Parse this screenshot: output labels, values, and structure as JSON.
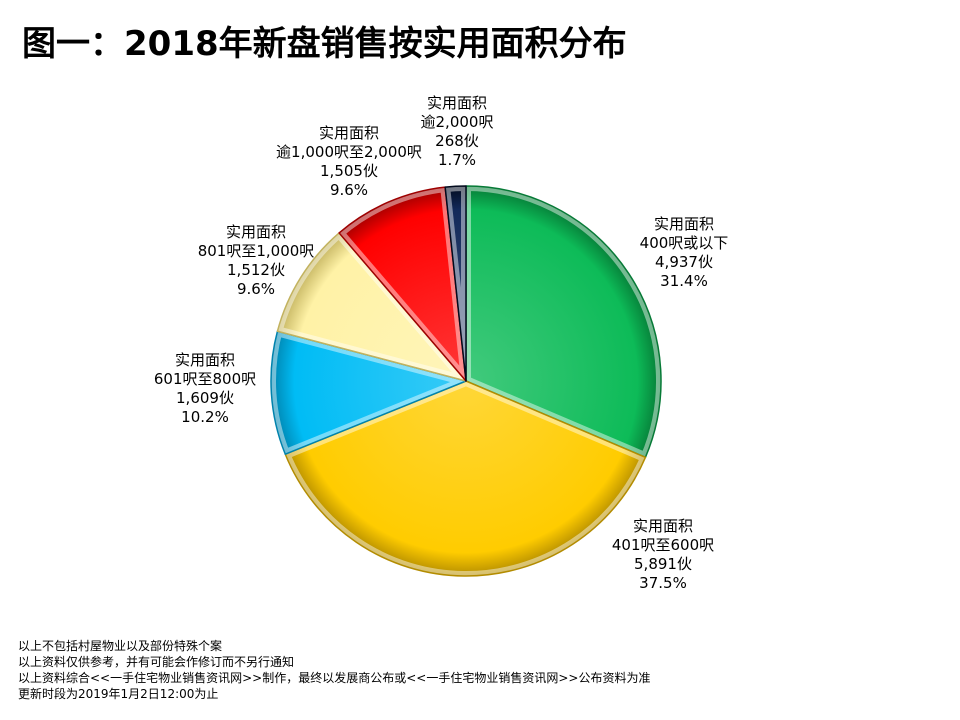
{
  "chart_data": {
    "type": "pie",
    "title": "图一：2018年新盘销售按实用面积分布",
    "slices": [
      {
        "name_line1": "实用面积",
        "name_line2": "400呎或以下",
        "count_text": "4,937伙",
        "percent_text": "31.4%",
        "value": 4937,
        "color": "#0DBB58",
        "edge": "#067A36"
      },
      {
        "name_line1": "实用面积",
        "name_line2": "401呎至600呎",
        "count_text": "5,891伙",
        "percent_text": "37.5%",
        "value": 5891,
        "color": "#FFCC00",
        "edge": "#B38C00"
      },
      {
        "name_line1": "实用面积",
        "name_line2": "601呎至800呎",
        "count_text": "1,609伙",
        "percent_text": "10.2%",
        "value": 1609,
        "color": "#00BCF5",
        "edge": "#0083AD"
      },
      {
        "name_line1": "实用面积",
        "name_line2": "801呎至1,000呎",
        "count_text": "1,512伙",
        "percent_text": "9.6%",
        "value": 1512,
        "color": "#FFF2A6",
        "edge": "#C2B25E"
      },
      {
        "name_line1": "实用面积",
        "name_line2": "逾1,000呎至2,000呎",
        "count_text": "1,505伙",
        "percent_text": "9.6%",
        "value": 1505,
        "color": "#FF0000",
        "edge": "#9E0000"
      },
      {
        "name_line1": "实用面积",
        "name_line2": "逾2,000呎",
        "count_text": "268伙",
        "percent_text": "1.7%",
        "value": 268,
        "color": "#12295A",
        "edge": "#020B1E"
      }
    ]
  },
  "notes": [
    "以上不包括村屋物业以及部份特殊个案",
    "以上资料仅供参考，并有可能会作修订而不另行通知",
    "以上资料综合<<一手住宅物业销售资讯网>>制作，最终以发展商公布或<<一手住宅物业销售资讯网>>公布资料为准",
    "更新时段为2019年1月2日12:00为止"
  ]
}
